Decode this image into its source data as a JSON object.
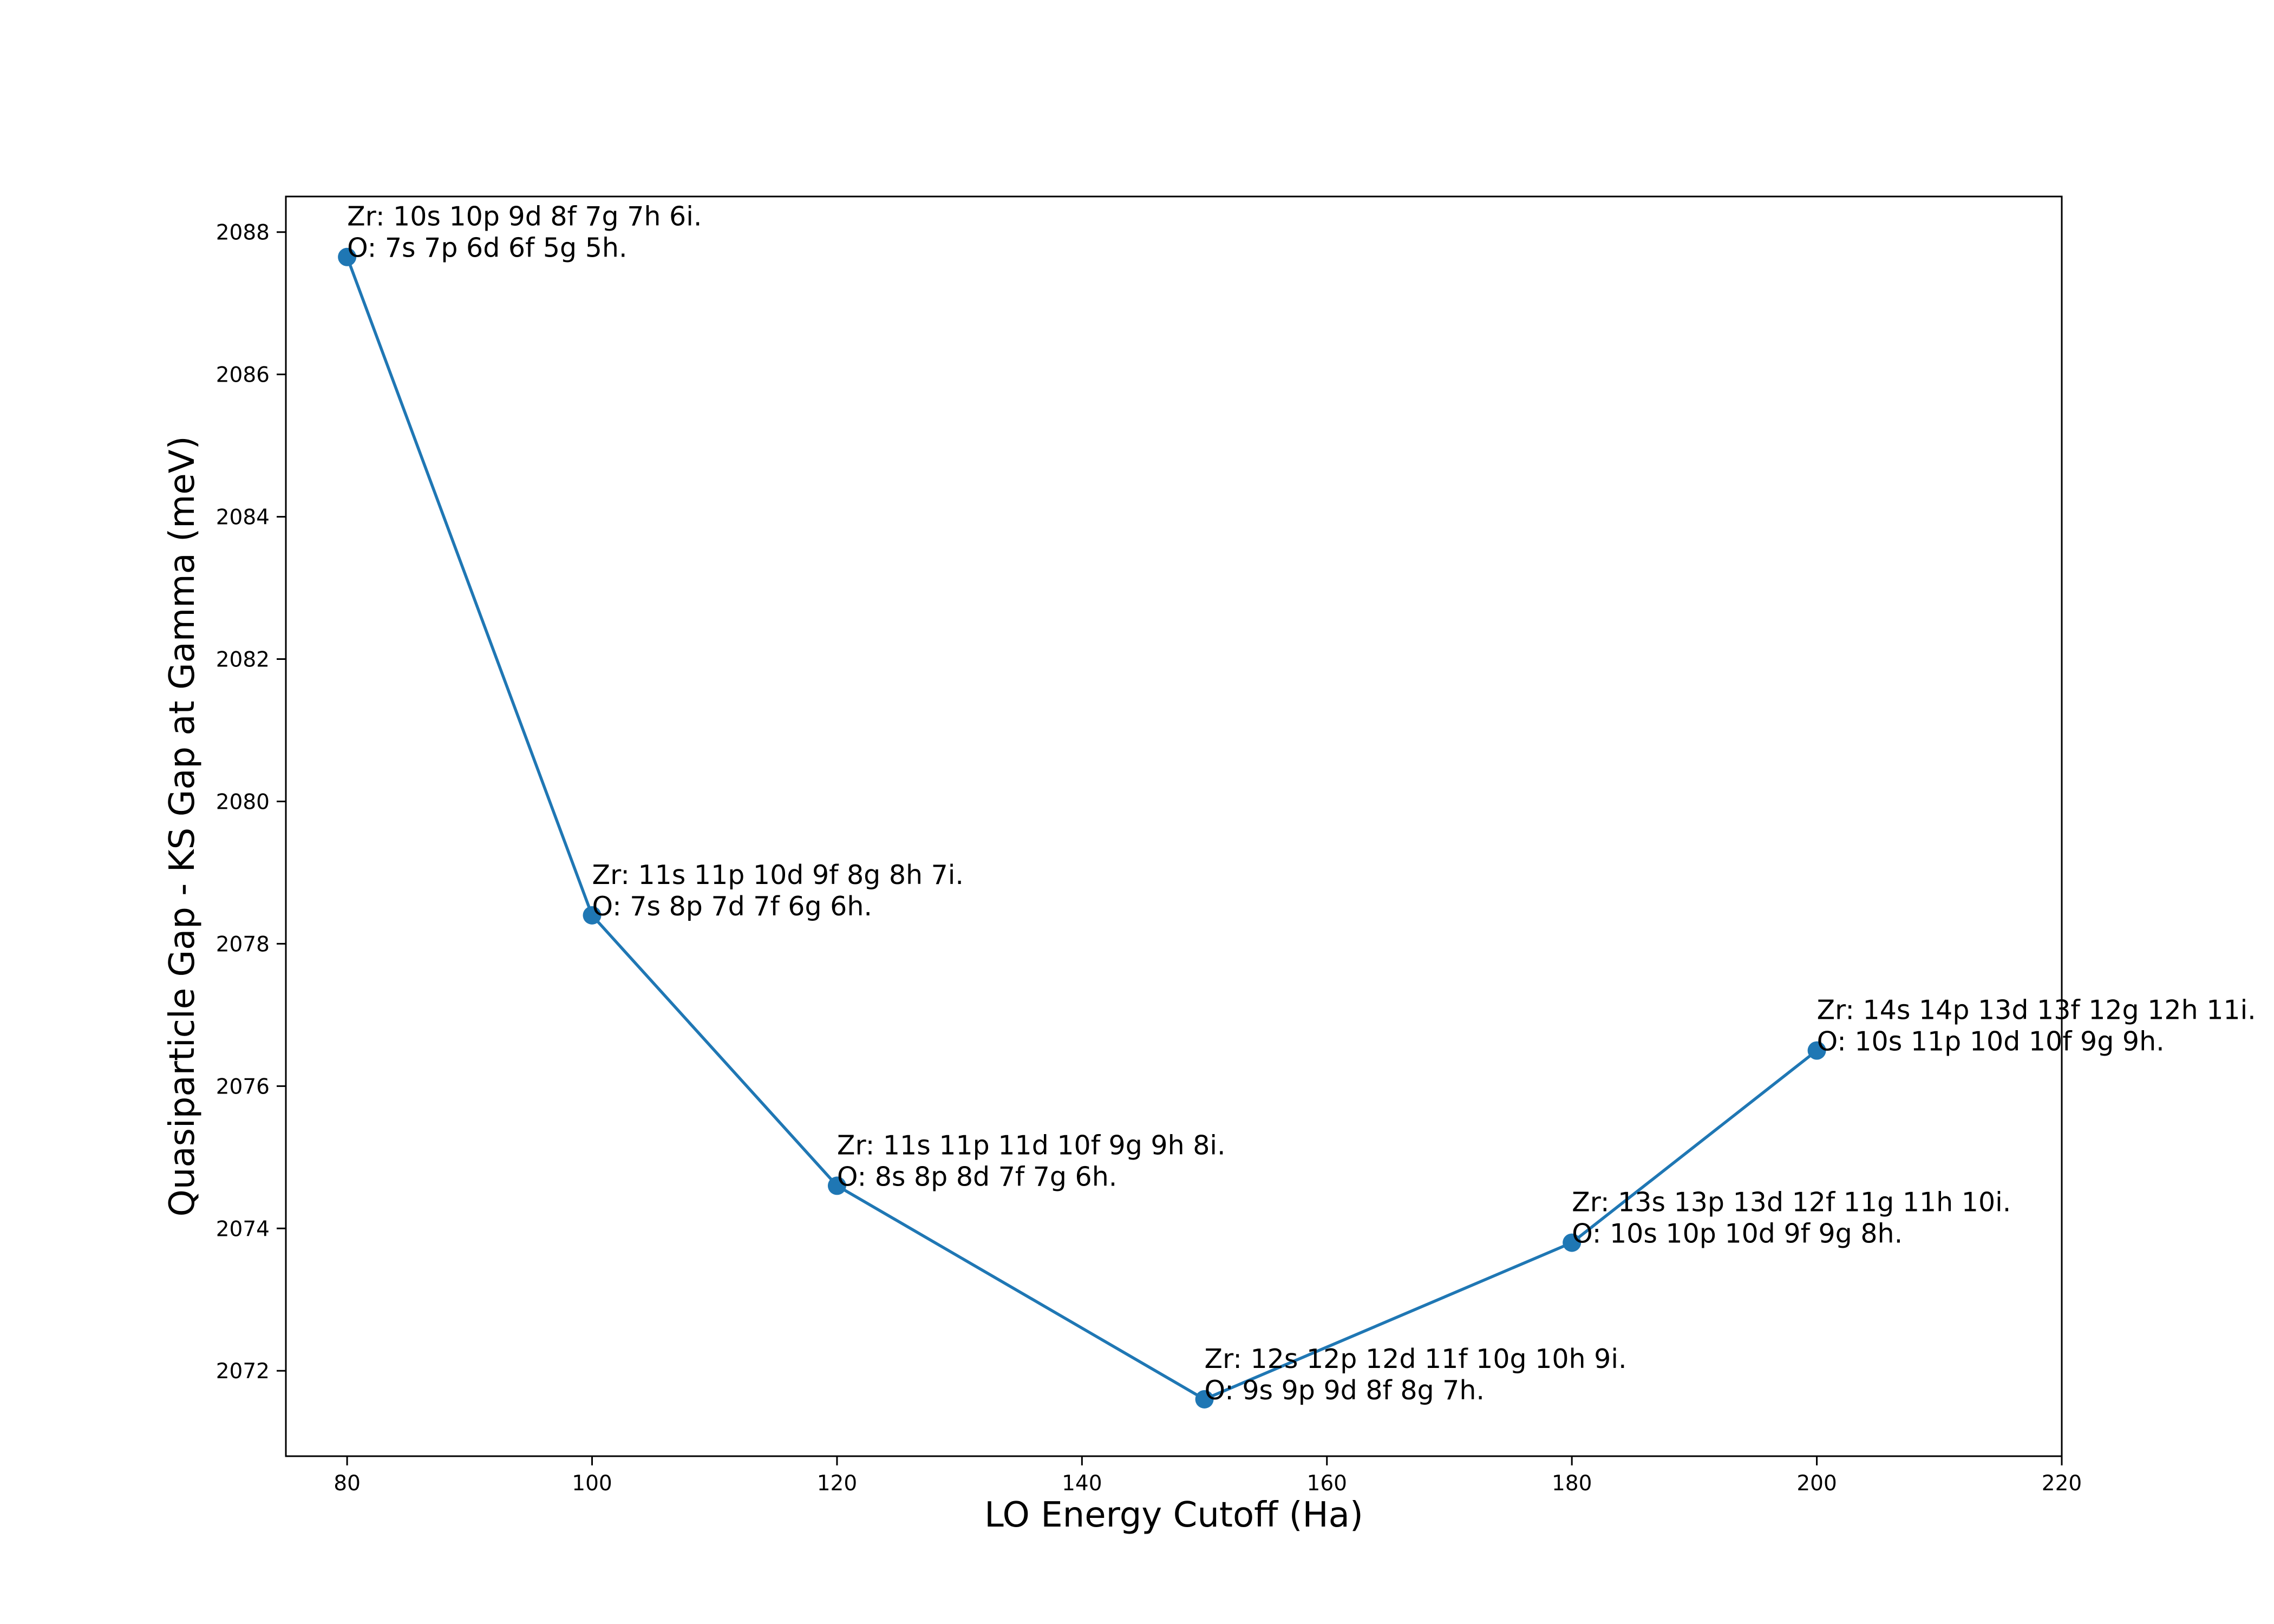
{
  "chart_data": {
    "type": "line",
    "title": "",
    "xlabel": "LO Energy Cutoff (Ha)",
    "ylabel": "Quasiparticle Gap - KS Gap at Gamma (meV)",
    "xlim": [
      75,
      220
    ],
    "ylim": [
      2070.8,
      2088.5
    ],
    "xticks": [
      80,
      100,
      120,
      140,
      160,
      180,
      200,
      220
    ],
    "yticks": [
      2072,
      2074,
      2076,
      2078,
      2080,
      2082,
      2084,
      2086,
      2088
    ],
    "grid": false,
    "legend": "none",
    "color": "#1f77b4",
    "series": [
      {
        "x": [
          80,
          100,
          120,
          150,
          180,
          200
        ],
        "y": [
          2087.65,
          2078.4,
          2074.6,
          2071.6,
          2073.8,
          2076.5
        ]
      }
    ],
    "annotations": [
      {
        "x": 80,
        "y": 2087.65,
        "lines": [
          "Zr: 10s 10p 9d 8f 7g 7h 6i.",
          "O: 7s 7p 6d 6f 5g 5h."
        ]
      },
      {
        "x": 100,
        "y": 2078.4,
        "lines": [
          "Zr: 11s 11p 10d 9f 8g 8h 7i.",
          "O: 7s 8p 7d 7f 6g 6h."
        ]
      },
      {
        "x": 120,
        "y": 2074.6,
        "lines": [
          "Zr: 11s 11p 11d 10f 9g 9h 8i.",
          "O: 8s 8p 8d 7f 7g 6h."
        ]
      },
      {
        "x": 150,
        "y": 2071.6,
        "lines": [
          "Zr: 12s 12p 12d 11f 10g 10h 9i.",
          "O: 9s 9p 9d 8f 8g 7h."
        ]
      },
      {
        "x": 180,
        "y": 2073.8,
        "lines": [
          "Zr: 13s 13p 13d 12f 11g 11h 10i.",
          "O: 10s 10p 10d 9f 9g 8h."
        ]
      },
      {
        "x": 200,
        "y": 2076.5,
        "lines": [
          "Zr: 14s 14p 13d 13f 12g 12h 11i.",
          "O: 10s 11p 10d 10f 9g 9h."
        ]
      }
    ]
  }
}
